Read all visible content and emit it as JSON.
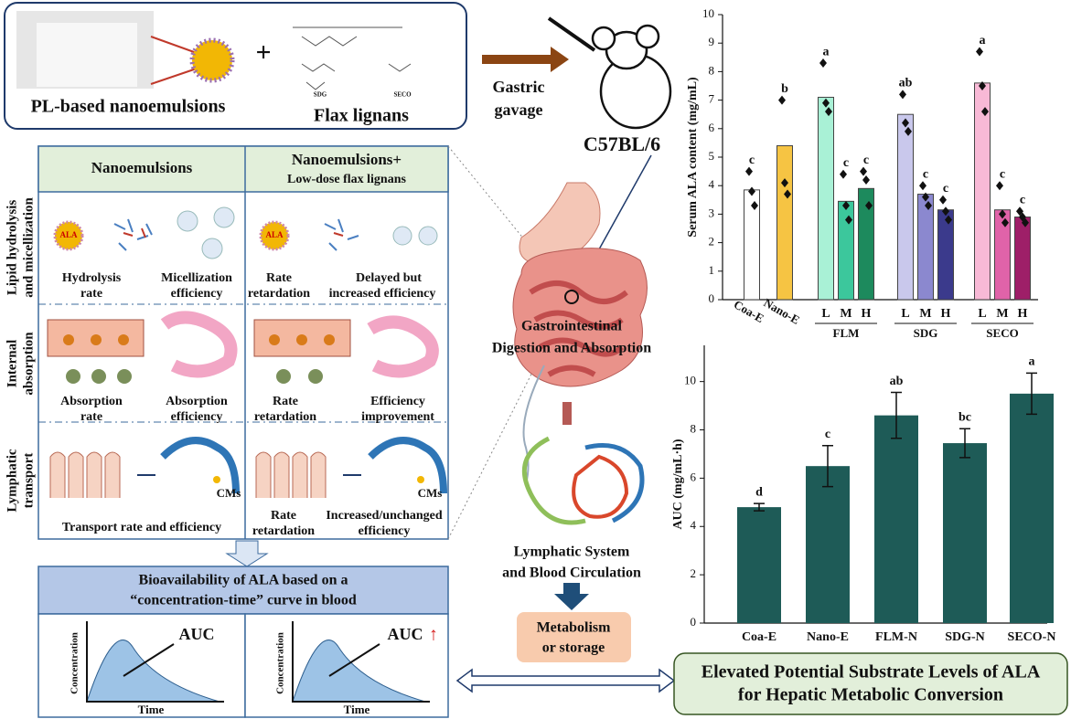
{
  "top": {
    "nanoemulsion_label": "PL-based nanoemulsions",
    "plus": "+",
    "lignans_label": "Flax lignans",
    "structure_labels": [
      "SDG",
      "SECO"
    ]
  },
  "gavage": {
    "label_lines": [
      "Gastric",
      "gavage"
    ],
    "strain": "C57BL/6"
  },
  "table": {
    "header_0": "Nanoemulsions",
    "header_1_lines": [
      "Nanoemulsions+",
      "Low-dose flax lignans"
    ],
    "rows": [
      {
        "label_lines": [
          "Lipid hydrolysis",
          "and micellization"
        ],
        "cells": [
          {
            "icon_label": "ALA",
            "captions": [
              [
                "Hydrolysis",
                "rate"
              ],
              [
                "Micellization",
                "efficiency"
              ]
            ]
          },
          {
            "icon_label": "ALA",
            "captions": [
              [
                "Rate",
                "retardation"
              ],
              [
                "Delayed but",
                "increased efficiency"
              ]
            ]
          }
        ]
      },
      {
        "label_lines": [
          "Internal",
          "absorption"
        ],
        "cells": [
          {
            "captions": [
              [
                "Absorption",
                "rate"
              ],
              [
                "Absorption",
                "efficiency"
              ]
            ]
          },
          {
            "captions": [
              [
                "Rate",
                "retardation"
              ],
              [
                "Efficiency",
                "improvement"
              ]
            ]
          }
        ]
      },
      {
        "label_lines": [
          "Lymphatic",
          "transport"
        ],
        "cells": [
          {
            "icon_label": "CMs",
            "captions": [
              [
                "Transport rate and efficiency"
              ]
            ]
          },
          {
            "icon_label": "CMs",
            "captions": [
              [
                "Rate",
                "retardation"
              ],
              [
                "Increased/unchanged",
                "efficiency"
              ]
            ]
          }
        ]
      }
    ]
  },
  "bioavailability": {
    "title_lines": [
      "Bioavailability of ALA based on a",
      "“concentration-time” curve in blood"
    ],
    "plots": [
      {
        "y_label": "Concentration",
        "x_label": "Time",
        "annotation": "AUC"
      },
      {
        "y_label": "Concentration",
        "x_label": "Time",
        "annotation": "AUC",
        "arrow": "↑"
      }
    ]
  },
  "center": {
    "gi_label_lines": [
      "Gastrointestinal",
      "Digestion and Absorption"
    ],
    "lymph_label_lines": [
      "Lymphatic System",
      "and Blood Circulation"
    ],
    "fate_lines": [
      "Metabolism",
      "or storage"
    ]
  },
  "conclusion_lines": [
    "Elevated Potential Substrate Levels of ALA",
    "for Hepatic Metabolic Conversion"
  ],
  "chart_data": [
    {
      "type": "bar",
      "y_label": "Serum ALA content (mg/mL)",
      "categories": [
        "Coa-E",
        "Nano-E",
        "L",
        "M",
        "H",
        "L",
        "M",
        "H",
        "L",
        "M",
        "H"
      ],
      "group_labels": [
        "FLM",
        "SDG",
        "SECO"
      ],
      "values": [
        3.85,
        5.4,
        7.1,
        3.45,
        3.9,
        6.5,
        3.7,
        3.15,
        7.6,
        3.15,
        2.9
      ],
      "points": [
        [
          4.5,
          3.8,
          3.3
        ],
        [
          7.0,
          4.1,
          3.7
        ],
        [
          8.3,
          6.9,
          6.6
        ],
        [
          4.4,
          3.3,
          2.8
        ],
        [
          4.5,
          4.2,
          3.3
        ],
        [
          7.2,
          6.2,
          5.9
        ],
        [
          4.0,
          3.6,
          3.3
        ],
        [
          3.5,
          3.1,
          2.8
        ],
        [
          8.7,
          7.5,
          6.6
        ],
        [
          4.0,
          3.0,
          2.7
        ],
        [
          3.1,
          2.9,
          2.7
        ]
      ],
      "significance": [
        "c",
        "b",
        "a",
        "c",
        "c",
        "ab",
        "c",
        "c",
        "a",
        "c",
        "c"
      ],
      "colors": [
        "#ffffff",
        "#f6c443",
        "#a9f1d6",
        "#3cc79c",
        "#1d8a5d",
        "#c9c8ec",
        "#8b88cf",
        "#3b3a8c",
        "#f8b9d6",
        "#e063a9",
        "#9e1f68"
      ],
      "ylim": [
        0,
        10
      ],
      "yticks": [
        0,
        1,
        2,
        3,
        4,
        5,
        6,
        7,
        8,
        9,
        10
      ]
    },
    {
      "type": "bar",
      "y_label": "AUC (mg/mL·h)",
      "categories": [
        "Coa-E",
        "Nano-E",
        "FLM-N",
        "SDG-N",
        "SECO-N"
      ],
      "values": [
        4.8,
        6.5,
        8.6,
        7.45,
        9.5
      ],
      "errors": [
        0.15,
        0.85,
        0.95,
        0.6,
        0.85
      ],
      "significance": [
        "d",
        "c",
        "ab",
        "bc",
        "a"
      ],
      "color": "#1e5b57",
      "ylim": [
        0,
        11.5
      ],
      "yticks": [
        0,
        2,
        4,
        6,
        8,
        10
      ]
    }
  ]
}
